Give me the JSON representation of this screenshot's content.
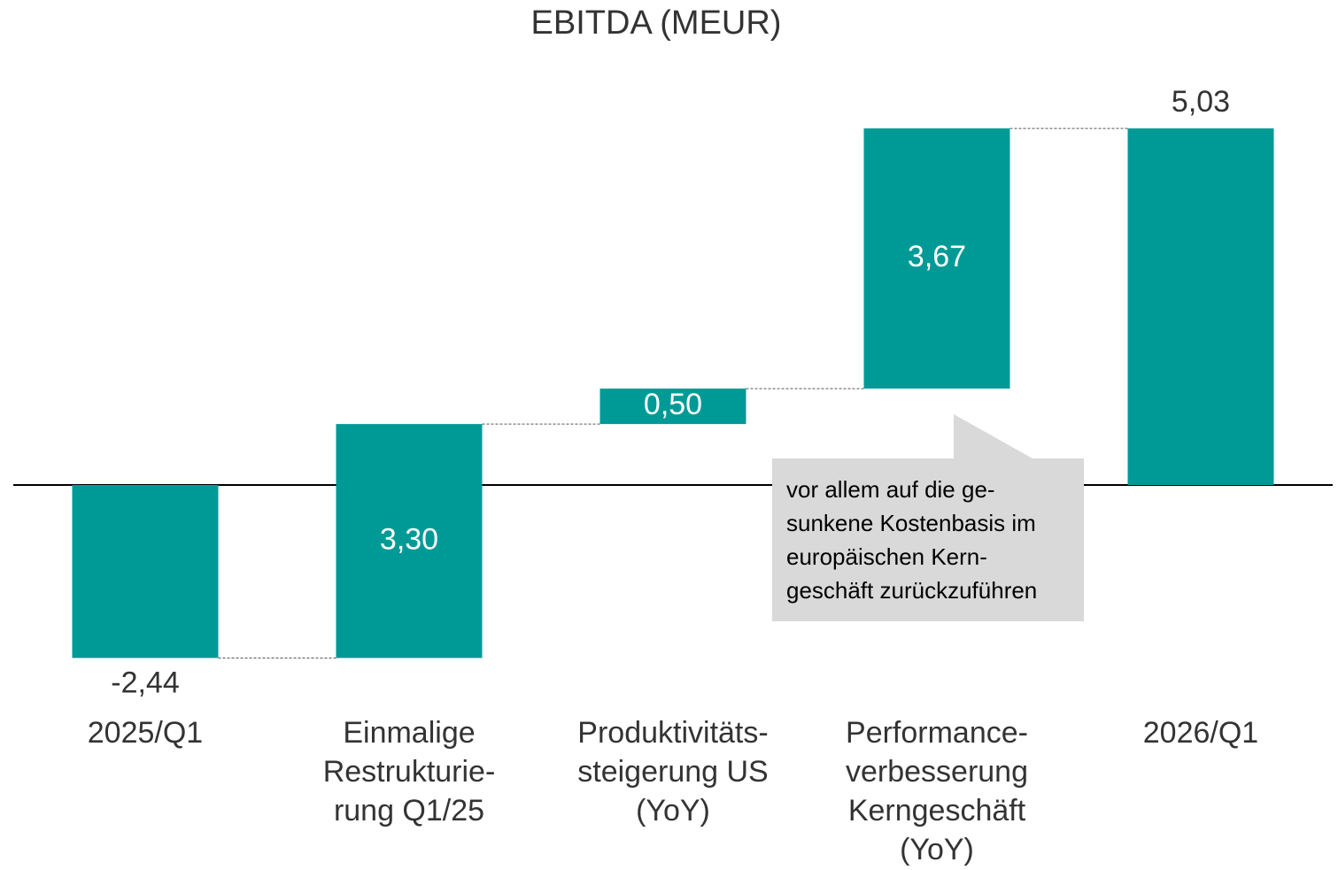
{
  "chart_data": {
    "type": "waterfall",
    "title": "EBITDA (MEUR)",
    "categories": [
      [
        "2025/Q1"
      ],
      [
        "Einmalige",
        "Restrukturie-",
        "rung Q1/25"
      ],
      [
        "Produktivitäts-",
        "steigerung US",
        "(YoY)"
      ],
      [
        "Performance-",
        "verbesserung",
        "Kerngeschäft",
        "(YoY)"
      ],
      [
        "2026/Q1"
      ]
    ],
    "values": [
      -2.44,
      3.3,
      0.5,
      3.67,
      5.03
    ],
    "value_labels": [
      "-2,44",
      "3,30",
      "0,50",
      "3,67",
      "5,03"
    ],
    "is_total": [
      true,
      false,
      false,
      false,
      true
    ],
    "color": "#009a96",
    "annotation": [
      "vor allem auf die ge-",
      "sunkene Kostenbasis im",
      "europäischen Kern-",
      "geschäft zurückzuführen"
    ]
  }
}
